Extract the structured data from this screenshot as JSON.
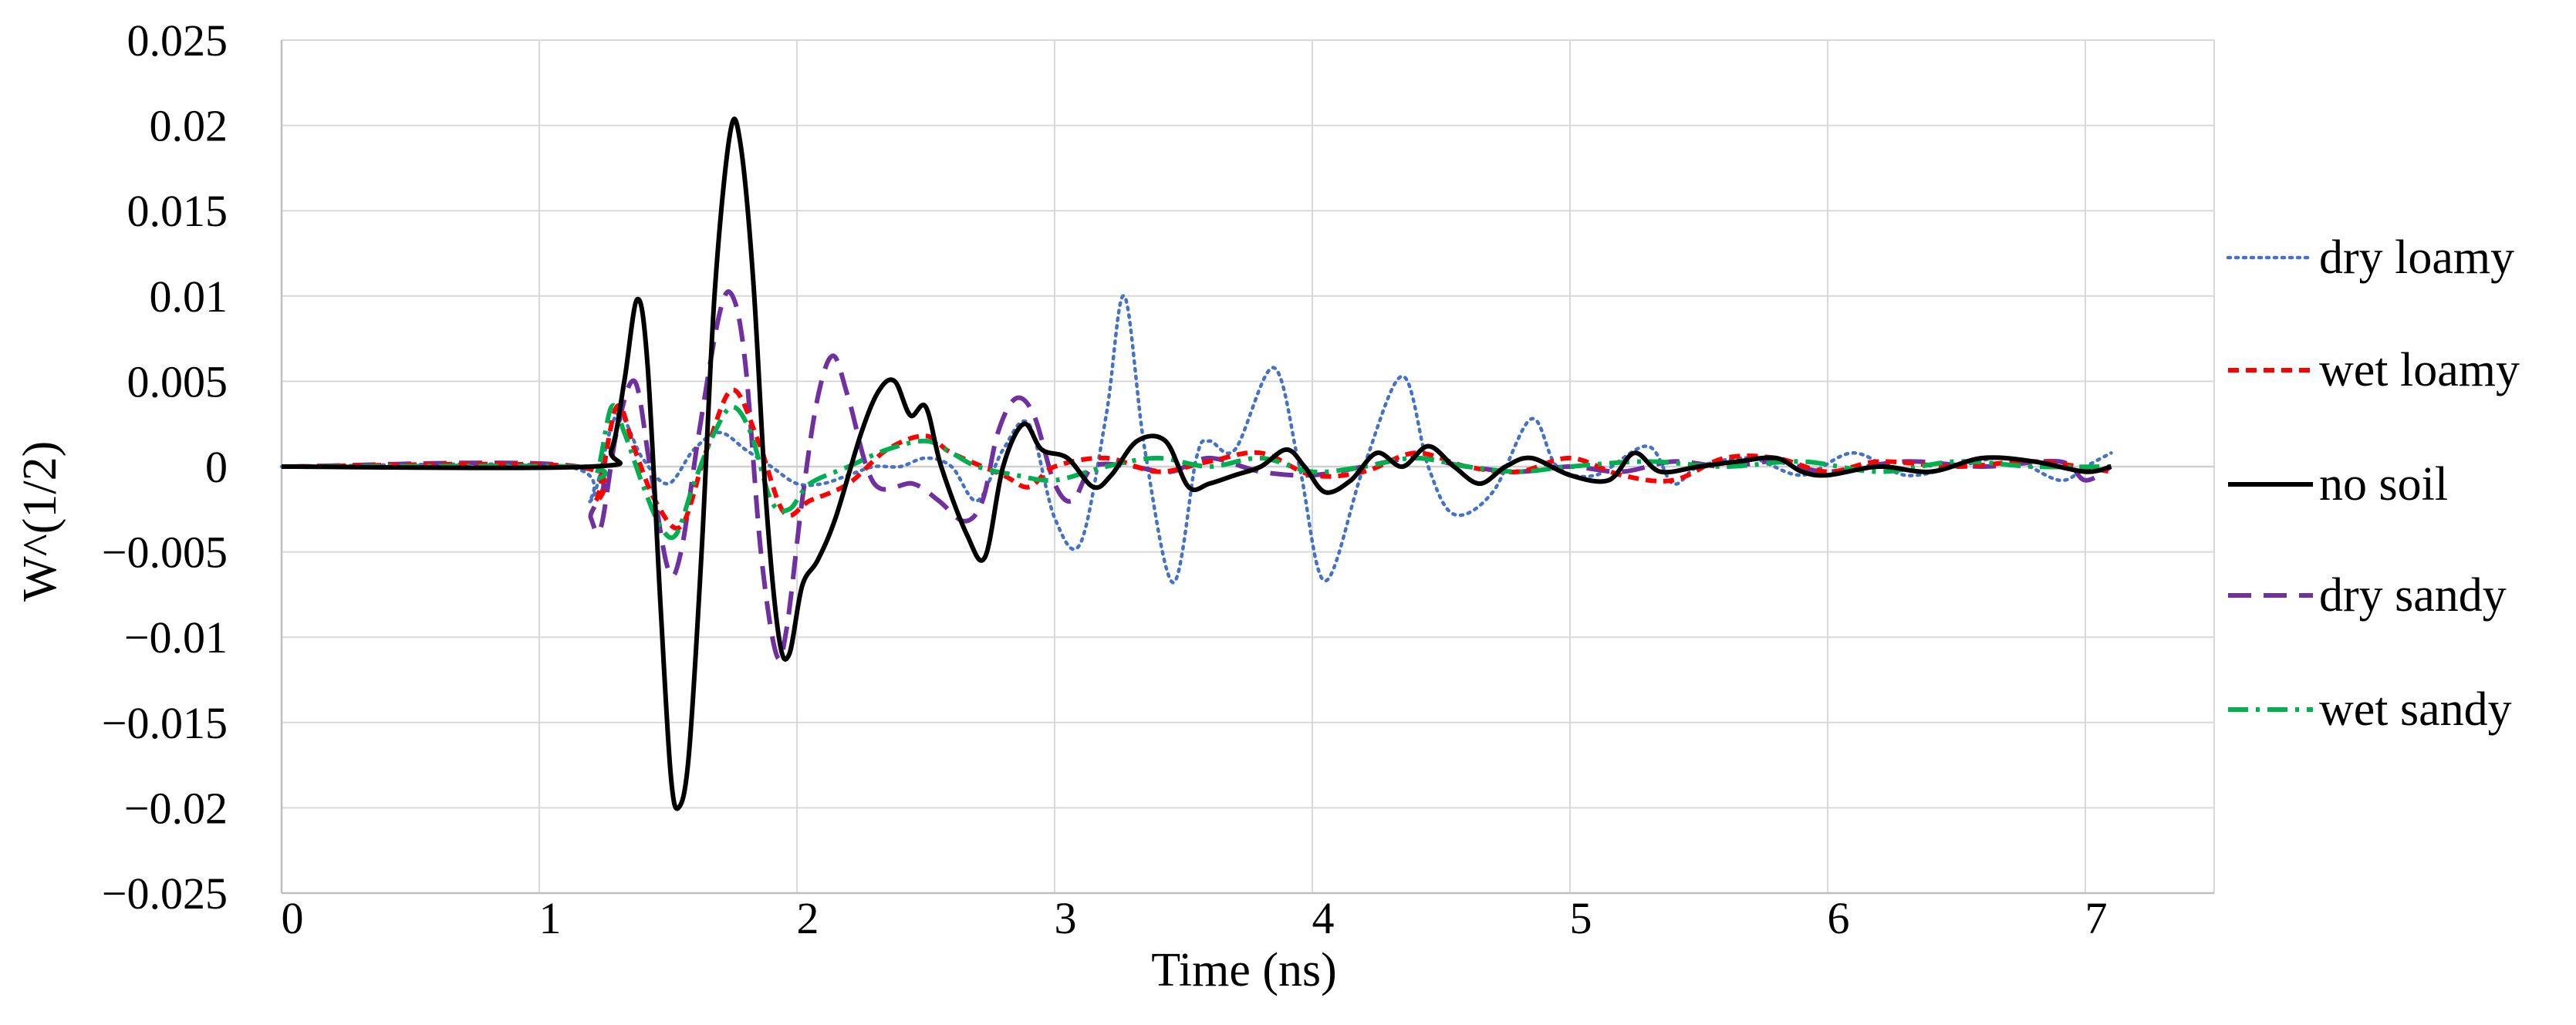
{
  "chart_data": {
    "type": "line",
    "title": "",
    "xlabel": "Time (ns)",
    "ylabel": "W^(1/2)",
    "xlim": [
      0,
      7.5
    ],
    "ylim": [
      -0.025,
      0.025
    ],
    "x_ticks": [
      0,
      1,
      2,
      3,
      4,
      5,
      6,
      7
    ],
    "y_ticks": [
      -0.025,
      -0.02,
      -0.015,
      -0.01,
      -0.005,
      0,
      0.005,
      0.01,
      0.015,
      0.02,
      0.025
    ],
    "x_tick_labels": [
      "0",
      "1",
      "2",
      "3",
      "4",
      "5",
      "6",
      "7"
    ],
    "y_tick_labels": [
      "−0.025",
      "−0.02",
      "−0.015",
      "−0.01",
      "−0.005",
      "0",
      "0.005",
      "0.01",
      "0.015",
      "0.02",
      "0.025"
    ],
    "grid": true,
    "legend_position": "right",
    "series": [
      {
        "name": "dry loamy",
        "color": "#4472C4",
        "dash": "dotted",
        "points": [
          [
            0,
            0
          ],
          [
            1.1,
            0
          ],
          [
            1.2,
            -0.002
          ],
          [
            1.3,
            0.003
          ],
          [
            1.4,
            0.0005
          ],
          [
            1.5,
            -0.001
          ],
          [
            1.6,
            0.001
          ],
          [
            1.7,
            0.002
          ],
          [
            1.8,
            0.001
          ],
          [
            1.9,
            0.0
          ],
          [
            2.0,
            -0.001
          ],
          [
            2.1,
            -0.001
          ],
          [
            2.2,
            -0.0005
          ],
          [
            2.3,
            0.0
          ],
          [
            2.4,
            0.0
          ],
          [
            2.5,
            0.0005
          ],
          [
            2.6,
            0.0
          ],
          [
            2.7,
            -0.002
          ],
          [
            2.8,
            0.001
          ],
          [
            2.9,
            0.0025
          ],
          [
            3.0,
            -0.003
          ],
          [
            3.1,
            -0.0045
          ],
          [
            3.2,
            0.003
          ],
          [
            3.27,
            0.01
          ],
          [
            3.35,
            0.001
          ],
          [
            3.46,
            -0.0068
          ],
          [
            3.55,
            0.0005
          ],
          [
            3.6,
            0.0015
          ],
          [
            3.7,
            0.001
          ],
          [
            3.85,
            0.0058
          ],
          [
            3.95,
            0.0
          ],
          [
            4.05,
            -0.0067
          ],
          [
            4.2,
            0.0
          ],
          [
            4.35,
            0.0053
          ],
          [
            4.45,
            0.0
          ],
          [
            4.55,
            -0.0028
          ],
          [
            4.7,
            -0.0015
          ],
          [
            4.85,
            0.0028
          ],
          [
            4.95,
            0.0
          ],
          [
            5.1,
            -0.0005
          ],
          [
            5.3,
            0.0012
          ],
          [
            5.4,
            -0.001
          ],
          [
            5.5,
            0.0
          ],
          [
            5.7,
            0.0005
          ],
          [
            5.9,
            -0.0005
          ],
          [
            6.1,
            0.0008
          ],
          [
            6.3,
            -0.0005
          ],
          [
            6.5,
            0.0
          ],
          [
            6.7,
            0.0005
          ],
          [
            6.9,
            -0.0008
          ],
          [
            7.0,
            0.0
          ],
          [
            7.1,
            0.0008
          ]
        ]
      },
      {
        "name": "wet loamy",
        "color": "#FF0000",
        "dash": "short-dash",
        "points": [
          [
            0,
            0
          ],
          [
            1.15,
            0
          ],
          [
            1.22,
            -0.002
          ],
          [
            1.3,
            0.0035
          ],
          [
            1.37,
            0.001
          ],
          [
            1.45,
            -0.002
          ],
          [
            1.55,
            -0.0035
          ],
          [
            1.65,
            0.001
          ],
          [
            1.75,
            0.0045
          ],
          [
            1.85,
            0.0015
          ],
          [
            1.95,
            -0.0027
          ],
          [
            2.05,
            -0.002
          ],
          [
            2.2,
            -0.001
          ],
          [
            2.35,
            0.001
          ],
          [
            2.5,
            0.0018
          ],
          [
            2.6,
            0.0008
          ],
          [
            2.8,
            -0.0005
          ],
          [
            2.9,
            -0.0012
          ],
          [
            3.0,
            0.0
          ],
          [
            3.2,
            0.0005
          ],
          [
            3.4,
            -0.0003
          ],
          [
            3.6,
            0.0003
          ],
          [
            3.8,
            0.0008
          ],
          [
            4.0,
            -0.0005
          ],
          [
            4.2,
            -0.0003
          ],
          [
            4.4,
            0.0008
          ],
          [
            4.6,
            0.0
          ],
          [
            4.8,
            -0.0003
          ],
          [
            5.0,
            0.0005
          ],
          [
            5.2,
            -0.0005
          ],
          [
            5.4,
            -0.0008
          ],
          [
            5.6,
            0.0005
          ],
          [
            5.8,
            0.0005
          ],
          [
            6.0,
            -0.0003
          ],
          [
            6.2,
            0.0003
          ],
          [
            6.5,
            0.0
          ],
          [
            6.8,
            0.0003
          ],
          [
            7.1,
            -0.0003
          ]
        ]
      },
      {
        "name": "no soil",
        "color": "#000000",
        "dash": "solid",
        "points": [
          [
            0,
            0
          ],
          [
            1.2,
            0
          ],
          [
            1.28,
            0.001
          ],
          [
            1.33,
            0.005
          ],
          [
            1.38,
            0.0098
          ],
          [
            1.42,
            0.006
          ],
          [
            1.47,
            -0.008
          ],
          [
            1.51,
            -0.018
          ],
          [
            1.54,
            -0.02
          ],
          [
            1.58,
            -0.017
          ],
          [
            1.63,
            -0.005
          ],
          [
            1.68,
            0.01
          ],
          [
            1.74,
            0.0195
          ],
          [
            1.78,
            0.019
          ],
          [
            1.83,
            0.011
          ],
          [
            1.88,
            -0.002
          ],
          [
            1.93,
            -0.01
          ],
          [
            1.97,
            -0.011
          ],
          [
            2.02,
            -0.007
          ],
          [
            2.08,
            -0.0055
          ],
          [
            2.15,
            -0.003
          ],
          [
            2.25,
            0.002
          ],
          [
            2.32,
            0.0045
          ],
          [
            2.38,
            0.005
          ],
          [
            2.44,
            0.003
          ],
          [
            2.5,
            0.0035
          ],
          [
            2.56,
            0.0
          ],
          [
            2.66,
            -0.004
          ],
          [
            2.73,
            -0.0053
          ],
          [
            2.8,
            0.0
          ],
          [
            2.88,
            0.0025
          ],
          [
            2.95,
            0.001
          ],
          [
            3.05,
            0.0005
          ],
          [
            3.15,
            -0.0012
          ],
          [
            3.22,
            -0.0005
          ],
          [
            3.32,
            0.0015
          ],
          [
            3.43,
            0.0015
          ],
          [
            3.52,
            -0.0012
          ],
          [
            3.6,
            -0.001
          ],
          [
            3.7,
            -0.0005
          ],
          [
            3.8,
            0.0
          ],
          [
            3.9,
            0.001
          ],
          [
            3.97,
            0.0
          ],
          [
            4.05,
            -0.0015
          ],
          [
            4.15,
            -0.0008
          ],
          [
            4.25,
            0.0008
          ],
          [
            4.35,
            0.0
          ],
          [
            4.45,
            0.0012
          ],
          [
            4.55,
            0.0
          ],
          [
            4.65,
            -0.001
          ],
          [
            4.75,
            0.0
          ],
          [
            4.85,
            0.0005
          ],
          [
            5.0,
            -0.0005
          ],
          [
            5.15,
            -0.0008
          ],
          [
            5.25,
            0.0008
          ],
          [
            5.35,
            -0.0003
          ],
          [
            5.5,
            0.0
          ],
          [
            5.65,
            0.0003
          ],
          [
            5.8,
            0.0005
          ],
          [
            5.9,
            -0.0003
          ],
          [
            6.0,
            -0.0005
          ],
          [
            6.2,
            0.0
          ],
          [
            6.4,
            -0.0003
          ],
          [
            6.6,
            0.0005
          ],
          [
            6.8,
            0.0003
          ],
          [
            7.0,
            -0.0003
          ],
          [
            7.1,
            0.0
          ]
        ]
      },
      {
        "name": "dry sandy",
        "color": "#7030A0",
        "dash": "long-dash",
        "points": [
          [
            0,
            0
          ],
          [
            1.15,
            0
          ],
          [
            1.2,
            -0.003
          ],
          [
            1.24,
            -0.0035
          ],
          [
            1.3,
            0.002
          ],
          [
            1.37,
            0.005
          ],
          [
            1.43,
            0.0
          ],
          [
            1.5,
            -0.006
          ],
          [
            1.55,
            -0.005
          ],
          [
            1.62,
            0.002
          ],
          [
            1.7,
            0.009
          ],
          [
            1.75,
            0.01
          ],
          [
            1.8,
            0.006
          ],
          [
            1.86,
            -0.005
          ],
          [
            1.92,
            -0.011
          ],
          [
            1.96,
            -0.0095
          ],
          [
            2.02,
            -0.002
          ],
          [
            2.08,
            0.004
          ],
          [
            2.14,
            0.0065
          ],
          [
            2.2,
            0.004
          ],
          [
            2.3,
            -0.001
          ],
          [
            2.45,
            -0.001
          ],
          [
            2.55,
            -0.002
          ],
          [
            2.65,
            -0.0032
          ],
          [
            2.72,
            -0.002
          ],
          [
            2.78,
            0.002
          ],
          [
            2.85,
            0.004
          ],
          [
            2.92,
            0.003
          ],
          [
            3.0,
            -0.001
          ],
          [
            3.07,
            -0.002
          ],
          [
            3.15,
            0.0
          ],
          [
            3.3,
            0.0
          ],
          [
            3.45,
            -0.0003
          ],
          [
            3.6,
            0.0005
          ],
          [
            3.8,
            -0.0003
          ],
          [
            4.0,
            -0.0005
          ],
          [
            4.2,
            0.0
          ],
          [
            4.4,
            0.0005
          ],
          [
            4.6,
            0.0
          ],
          [
            4.8,
            -0.0003
          ],
          [
            5.0,
            0.0
          ],
          [
            5.2,
            -0.0003
          ],
          [
            5.4,
            0.0003
          ],
          [
            5.6,
            0.0
          ],
          [
            5.8,
            0.0003
          ],
          [
            6.0,
            -0.0003
          ],
          [
            6.3,
            0.0003
          ],
          [
            6.6,
            0.0
          ],
          [
            6.9,
            0.0003
          ],
          [
            7.0,
            -0.0008
          ],
          [
            7.1,
            0.0
          ]
        ]
      },
      {
        "name": "wet sandy",
        "color": "#00B050",
        "dash": "dash-dot",
        "points": [
          [
            0,
            0
          ],
          [
            1.15,
            0
          ],
          [
            1.22,
            -0.0005
          ],
          [
            1.28,
            0.0035
          ],
          [
            1.33,
            0.002
          ],
          [
            1.4,
            -0.001
          ],
          [
            1.47,
            -0.0035
          ],
          [
            1.53,
            -0.004
          ],
          [
            1.6,
            -0.001
          ],
          [
            1.68,
            0.002
          ],
          [
            1.75,
            0.0035
          ],
          [
            1.82,
            0.002
          ],
          [
            1.9,
            -0.002
          ],
          [
            1.97,
            -0.0025
          ],
          [
            2.05,
            -0.001
          ],
          [
            2.2,
            0.0
          ],
          [
            2.35,
            0.001
          ],
          [
            2.5,
            0.0015
          ],
          [
            2.6,
            0.0008
          ],
          [
            2.7,
            0.0
          ],
          [
            2.85,
            -0.0005
          ],
          [
            3.0,
            -0.0008
          ],
          [
            3.2,
            0.0
          ],
          [
            3.4,
            0.0005
          ],
          [
            3.6,
            0.0
          ],
          [
            3.8,
            0.0005
          ],
          [
            4.0,
            -0.0003
          ],
          [
            4.2,
            0.0
          ],
          [
            4.4,
            0.0005
          ],
          [
            4.6,
            0.0
          ],
          [
            4.8,
            -0.0003
          ],
          [
            5.0,
            0.0
          ],
          [
            5.3,
            0.0003
          ],
          [
            5.6,
            0.0
          ],
          [
            5.9,
            0.0003
          ],
          [
            6.2,
            -0.0003
          ],
          [
            6.5,
            0.0003
          ],
          [
            6.8,
            0.0
          ],
          [
            7.1,
            0.0
          ]
        ]
      }
    ]
  }
}
